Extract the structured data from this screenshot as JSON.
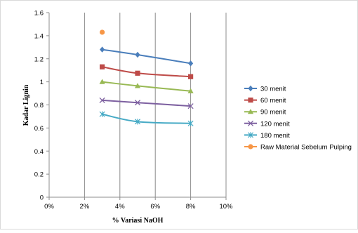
{
  "chart_data": {
    "type": "line",
    "xlabel": "%  Variasi NaOH",
    "ylabel": "Kadar Lignin",
    "x_ticks": [
      0,
      2,
      4,
      6,
      8,
      10
    ],
    "x_tick_labels": [
      "0%",
      "2%",
      "4%",
      "6%",
      "8%",
      "10%"
    ],
    "y_ticks": [
      0,
      0.2,
      0.4,
      0.6,
      0.8,
      1,
      1.2,
      1.4,
      1.6
    ],
    "y_tick_labels": [
      "0",
      "0.2",
      "0.4",
      "0.6",
      "0.8",
      "1",
      "1.2",
      "1.4",
      "1.6"
    ],
    "xlim": [
      0,
      10
    ],
    "ylim": [
      0,
      1.6
    ],
    "grid": "vertical",
    "legend_position": "right",
    "series": [
      {
        "name": "30 menit",
        "color": "#4a7ebb",
        "marker": "diamond",
        "x": [
          3,
          5,
          8
        ],
        "y": [
          1.28,
          1.235,
          1.16
        ]
      },
      {
        "name": "60 menit",
        "color": "#be4b48",
        "marker": "square",
        "x": [
          3,
          5,
          8
        ],
        "y": [
          1.13,
          1.075,
          1.045
        ]
      },
      {
        "name": "90 menit",
        "color": "#98b954",
        "marker": "triangle",
        "x": [
          3,
          5,
          8
        ],
        "y": [
          1.0,
          0.965,
          0.92
        ]
      },
      {
        "name": "120 menit",
        "color": "#7d60a0",
        "marker": "x",
        "x": [
          3,
          5,
          8
        ],
        "y": [
          0.84,
          0.82,
          0.79
        ]
      },
      {
        "name": "180 menit",
        "color": "#46aac5",
        "marker": "star",
        "x": [
          3,
          5,
          8
        ],
        "y": [
          0.72,
          0.655,
          0.64
        ]
      },
      {
        "name": "Raw Material Sebelum Pulping",
        "color": "#f79646",
        "marker": "circle",
        "x": [
          3
        ],
        "y": [
          1.43
        ]
      }
    ]
  }
}
